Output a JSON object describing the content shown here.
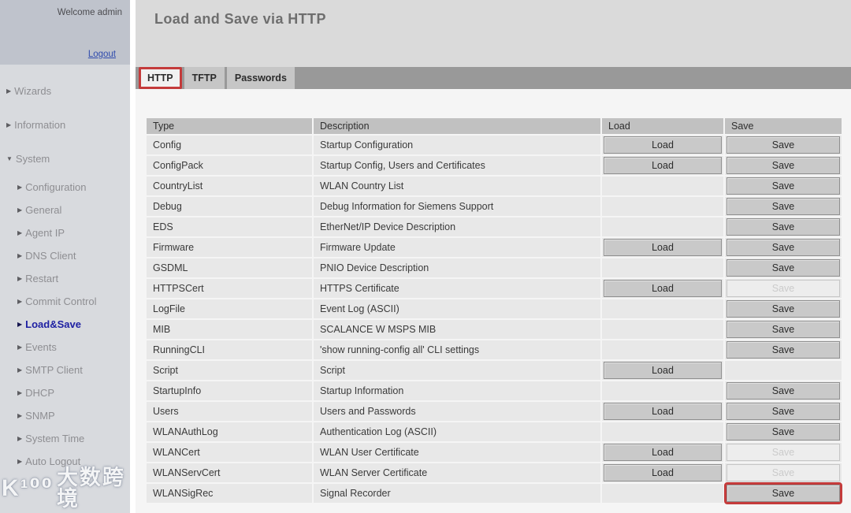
{
  "colors": {
    "accent_red": "#c43b3b",
    "link_blue": "#2f4bad",
    "active_nav_blue": "#1f21a3"
  },
  "sidebar": {
    "welcome": "Welcome admin",
    "logout_label": "Logout",
    "items": [
      {
        "label": "Wizards",
        "level": 1,
        "arrow": "collapsed"
      },
      {
        "label": "Information",
        "level": 1,
        "arrow": "collapsed"
      },
      {
        "label": "System",
        "level": 1,
        "arrow": "expanded"
      },
      {
        "label": "Configuration",
        "level": 2,
        "arrow": "collapsed"
      },
      {
        "label": "General",
        "level": 2,
        "arrow": "collapsed"
      },
      {
        "label": "Agent IP",
        "level": 2,
        "arrow": "collapsed"
      },
      {
        "label": "DNS Client",
        "level": 2,
        "arrow": "collapsed"
      },
      {
        "label": "Restart",
        "level": 2,
        "arrow": "collapsed"
      },
      {
        "label": "Commit Control",
        "level": 2,
        "arrow": "collapsed"
      },
      {
        "label": "Load&Save",
        "level": 2,
        "arrow": "collapsed",
        "active": true
      },
      {
        "label": "Events",
        "level": 2,
        "arrow": "collapsed"
      },
      {
        "label": "SMTP Client",
        "level": 2,
        "arrow": "collapsed"
      },
      {
        "label": "DHCP",
        "level": 2,
        "arrow": "collapsed"
      },
      {
        "label": "SNMP",
        "level": 2,
        "arrow": "collapsed"
      },
      {
        "label": "System Time",
        "level": 2,
        "arrow": "collapsed"
      },
      {
        "label": "Auto Logout",
        "level": 2,
        "arrow": "collapsed"
      }
    ]
  },
  "header": {
    "title": "Load and Save via HTTP"
  },
  "tabs": [
    {
      "label": "HTTP",
      "active": true,
      "highlighted": true
    },
    {
      "label": "TFTP",
      "active": false,
      "highlighted": false
    },
    {
      "label": "Passwords",
      "active": false,
      "highlighted": false
    }
  ],
  "table": {
    "columns": [
      "Type",
      "Description",
      "Load",
      "Save"
    ],
    "load_button_label": "Load",
    "save_button_label": "Save",
    "rows": [
      {
        "type": "Config",
        "description": "Startup Configuration",
        "load": true,
        "save": "enabled",
        "save_highlighted": false
      },
      {
        "type": "ConfigPack",
        "description": "Startup Config, Users and Certificates",
        "load": true,
        "save": "enabled",
        "save_highlighted": false
      },
      {
        "type": "CountryList",
        "description": "WLAN Country List",
        "load": false,
        "save": "enabled",
        "save_highlighted": false
      },
      {
        "type": "Debug",
        "description": "Debug Information for Siemens Support",
        "load": false,
        "save": "enabled",
        "save_highlighted": false
      },
      {
        "type": "EDS",
        "description": "EtherNet/IP Device Description",
        "load": false,
        "save": "enabled",
        "save_highlighted": false
      },
      {
        "type": "Firmware",
        "description": "Firmware Update",
        "load": true,
        "save": "enabled",
        "save_highlighted": false
      },
      {
        "type": "GSDML",
        "description": "PNIO Device Description",
        "load": false,
        "save": "enabled",
        "save_highlighted": false
      },
      {
        "type": "HTTPSCert",
        "description": "HTTPS Certificate",
        "load": true,
        "save": "disabled",
        "save_highlighted": false
      },
      {
        "type": "LogFile",
        "description": "Event Log (ASCII)",
        "load": false,
        "save": "enabled",
        "save_highlighted": false
      },
      {
        "type": "MIB",
        "description": "SCALANCE W MSPS MIB",
        "load": false,
        "save": "enabled",
        "save_highlighted": false
      },
      {
        "type": "RunningCLI",
        "description": "'show running-config all' CLI settings",
        "load": false,
        "save": "enabled",
        "save_highlighted": false
      },
      {
        "type": "Script",
        "description": "Script",
        "load": true,
        "save": "none",
        "save_highlighted": false
      },
      {
        "type": "StartupInfo",
        "description": "Startup Information",
        "load": false,
        "save": "enabled",
        "save_highlighted": false
      },
      {
        "type": "Users",
        "description": "Users and Passwords",
        "load": true,
        "save": "enabled",
        "save_highlighted": false
      },
      {
        "type": "WLANAuthLog",
        "description": "Authentication Log (ASCII)",
        "load": false,
        "save": "enabled",
        "save_highlighted": false
      },
      {
        "type": "WLANCert",
        "description": "WLAN User Certificate",
        "load": true,
        "save": "disabled",
        "save_highlighted": false
      },
      {
        "type": "WLANServCert",
        "description": "WLAN Server Certificate",
        "load": true,
        "save": "disabled",
        "save_highlighted": false
      },
      {
        "type": "WLANSigRec",
        "description": "Signal Recorder",
        "load": false,
        "save": "enabled",
        "save_highlighted": true
      }
    ]
  },
  "watermark": {
    "logo": "K¹⁰⁰",
    "text": "大数跨境"
  }
}
